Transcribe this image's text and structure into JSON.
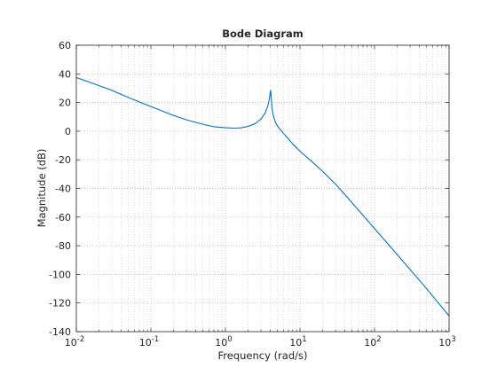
{
  "chart_data": {
    "type": "line",
    "title": "Bode Diagram",
    "xlabel": "Frequency  (rad/s)",
    "ylabel": "Magnitude (dB)",
    "x_scale": "log",
    "xlim": [
      0.01,
      1000
    ],
    "ylim": [
      -140,
      60
    ],
    "x_ticks": [
      0.01,
      0.1,
      1,
      10,
      100,
      1000
    ],
    "x_tick_labels": [
      {
        "base": "10",
        "exp": "-2"
      },
      {
        "base": "10",
        "exp": "-1"
      },
      {
        "base": "10",
        "exp": "0"
      },
      {
        "base": "10",
        "exp": "1"
      },
      {
        "base": "10",
        "exp": "2"
      },
      {
        "base": "10",
        "exp": "3"
      }
    ],
    "y_ticks": [
      60,
      40,
      20,
      0,
      -20,
      -40,
      -60,
      -80,
      -100,
      -120,
      -140
    ],
    "y_tick_labels": [
      "60",
      "40",
      "20",
      "0",
      "-20",
      "-40",
      "-60",
      "-80",
      "-100",
      "-120",
      "-140"
    ],
    "grid": true,
    "minor_grid": true,
    "series": [
      {
        "color": "#0072bd",
        "x": [
          0.01,
          0.02,
          0.03,
          0.05,
          0.1,
          0.2,
          0.3,
          0.5,
          0.7,
          1.0,
          1.3,
          1.6,
          2.0,
          2.5,
          3.0,
          3.4,
          3.7,
          3.9,
          4.0,
          4.05,
          4.1,
          4.2,
          4.4,
          4.7,
          5.0,
          6.0,
          7.0,
          8.0,
          10,
          15,
          20,
          30,
          50,
          100,
          200,
          500,
          1000
        ],
        "y": [
          37.5,
          31.8,
          28.5,
          23.5,
          17.2,
          11.0,
          7.9,
          4.8,
          3.1,
          2.4,
          2.1,
          2.3,
          3.3,
          5.2,
          8.5,
          12.5,
          17.5,
          23.0,
          27.5,
          28.5,
          25.0,
          17.0,
          10.5,
          6.0,
          3.5,
          -1.5,
          -5.5,
          -9.0,
          -14.0,
          -22.0,
          -28.0,
          -37.0,
          -50.0,
          -68.0,
          -86.0,
          -110.0,
          -129.0
        ]
      }
    ]
  }
}
